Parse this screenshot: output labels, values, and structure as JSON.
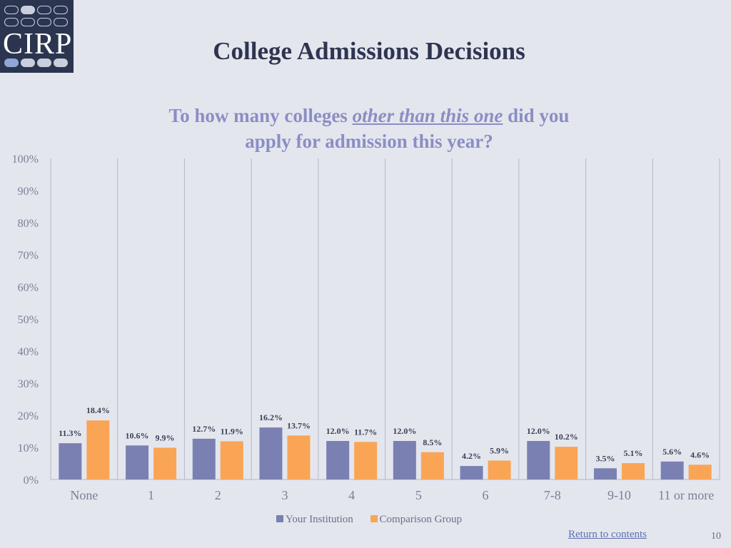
{
  "logo": {
    "text": "CIRP"
  },
  "header": {
    "title": "College Admissions Decisions",
    "subtitle_part1": "To how many colleges ",
    "subtitle_emphasis": "other than this one",
    "subtitle_part2": " did you",
    "subtitle_line2": "apply for admission this year?"
  },
  "chart_data": {
    "type": "bar",
    "categories": [
      "None",
      "1",
      "2",
      "3",
      "4",
      "5",
      "6",
      "7-8",
      "9-10",
      "11 or more"
    ],
    "series": [
      {
        "name": "Your Institution",
        "color": "#7b80b2",
        "values": [
          11.3,
          10.6,
          12.7,
          16.2,
          12.0,
          12.0,
          4.2,
          12.0,
          3.5,
          5.6
        ],
        "labels": [
          "11.3%",
          "10.6%",
          "12.7%",
          "16.2%",
          "12.0%",
          "12.0%",
          "4.2%",
          "12.0%",
          "3.5%",
          "5.6%"
        ]
      },
      {
        "name": "Comparison Group",
        "color": "#f9a555",
        "values": [
          18.4,
          9.9,
          11.9,
          13.7,
          11.7,
          8.5,
          5.9,
          10.2,
          5.1,
          4.6
        ],
        "labels": [
          "18.4%",
          "9.9%",
          "11.9%",
          "13.7%",
          "11.7%",
          "8.5%",
          "5.9%",
          "10.2%",
          "5.1%",
          "4.6%"
        ]
      }
    ],
    "ylim": [
      0,
      100
    ],
    "yticks": [
      "0%",
      "10%",
      "20%",
      "30%",
      "40%",
      "50%",
      "60%",
      "70%",
      "80%",
      "90%",
      "100%"
    ],
    "grid": "vertical category separators",
    "legend_position": "bottom"
  },
  "footer": {
    "link": "Return to contents",
    "page_number": "10"
  }
}
